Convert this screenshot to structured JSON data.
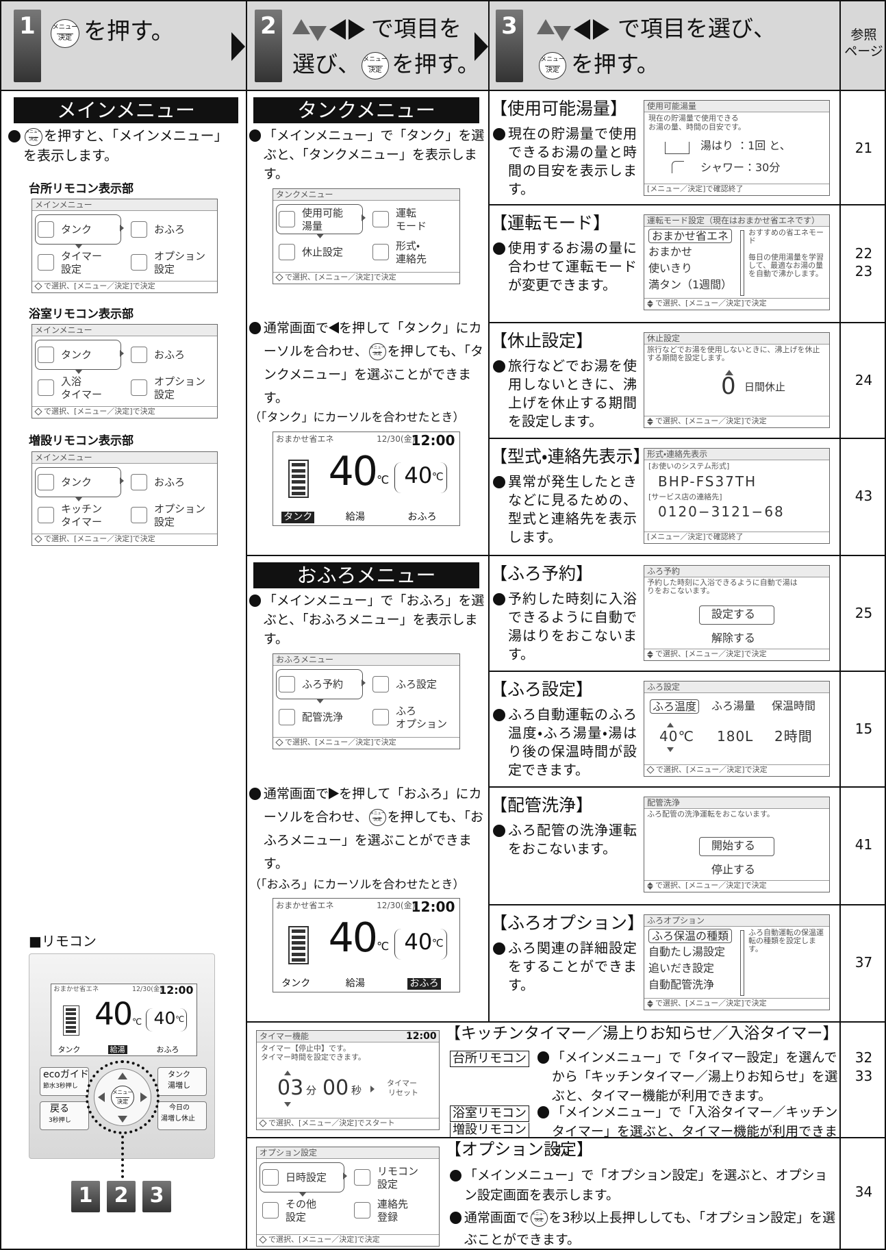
{
  "button_icon": {
    "top": "メニュー",
    "bottom": "決定"
  },
  "header": {
    "step1": {
      "number": "1",
      "text": "を押す。"
    },
    "step2": {
      "number": "2",
      "text_a": "で項目を",
      "text_b": "選び、",
      "text_c": "を押す。"
    },
    "step3": {
      "number": "3",
      "text_a": "で項目を選び、",
      "text_b": "を押す。"
    },
    "ref": [
      "参照",
      "ページ"
    ]
  },
  "footer_select": "で選択、[メニュー／決定]で決定",
  "footer_confirm": "[メニュー／決定]で確認終了",
  "normal_screen": {
    "mode": "おまかせ省エネ",
    "date": "12/30(金)",
    "time": "12:00",
    "temp": "40",
    "unit": "℃",
    "bath_temp": "40",
    "tank": "タンク",
    "hot_water": "給湯",
    "bath": "おふろ"
  },
  "main_menu": {
    "title": "メインメニュー",
    "desc": "を押すと、「メインメニュー」を表示します。",
    "screen_title": "メインメニュー",
    "remotes": [
      {
        "label": "台所リモコン表示部",
        "items": [
          [
            "タンク"
          ],
          [
            "おふろ"
          ],
          [
            "タイマー",
            "設定"
          ],
          [
            "オプション",
            "設定"
          ]
        ]
      },
      {
        "label": "浴室リモコン表示部",
        "items": [
          [
            "タンク"
          ],
          [
            "おふろ"
          ],
          [
            "入浴",
            "タイマー"
          ],
          [
            "オプション",
            "設定"
          ]
        ]
      },
      {
        "label": "増設リモコン表示部",
        "items": [
          [
            "タンク"
          ],
          [
            "おふろ"
          ],
          [
            "キッチン",
            "タイマー"
          ],
          [
            "オプション",
            "設定"
          ]
        ]
      }
    ]
  },
  "tank_menu": {
    "title": "タンクメニュー",
    "desc": "「メインメニュー」で「タンク」を選ぶと、「タンクメニュー」を表示します。",
    "screen_title": "タンクメニュー",
    "items": [
      [
        "使用可能",
        "湯量"
      ],
      [
        "運転",
        "モード"
      ],
      [
        "休止設定"
      ],
      [
        "形式・",
        "連絡先"
      ]
    ],
    "note": [
      "通常画面で",
      "を押して「タンク」にカーソルを合わせ、",
      "を押しても、「タンクメニュー」を選ぶことができます。"
    ],
    "caption": "（「タンク」にカーソルを合わせたとき）"
  },
  "bath_menu": {
    "title": "おふろメニュー",
    "desc": "「メインメニュー」で「おふろ」を選ぶと、「おふろメニュー」を表示します。",
    "screen_title": "おふろメニュー",
    "items": [
      [
        "ふろ予約"
      ],
      [
        "ふろ設定"
      ],
      [
        "配管洗浄"
      ],
      [
        "ふろ",
        "オプション"
      ]
    ],
    "note": [
      "通常画面で",
      "を押して「おふろ」にカーソルを合わせ、",
      "を押しても、「おふろメニュー」を選ぶことができます。"
    ],
    "caption": "（「おふろ」にカーソルを合わせたとき）"
  },
  "settings": [
    {
      "title": "【使用可能湯量】",
      "desc": "現在の貯湯量で使用できるお湯の量と時間の目安を表示します。",
      "pages": [
        "21"
      ],
      "screen": {
        "title": "使用可能湯量",
        "lines": [
          "現在の貯湯量で使用できる",
          "お湯の量、時間の目安です。"
        ],
        "fill": "湯はり ：1回 と、",
        "shower": "シャワー：30分"
      }
    },
    {
      "title": "【運転モード】",
      "desc": "使用するお湯の量に合わせて運転モードが変更できます。",
      "pages": [
        "22",
        "23"
      ],
      "screen": {
        "title": "運転モード設定（現在はおまかせ省エネです）",
        "items": [
          "おまかせ省エネ",
          "おまかせ",
          "使いきり",
          "満タン（1週間）"
        ],
        "side": [
          "おすすめの省エネモード",
          "毎日の使用湯量を学習して、最適なお湯の量を自動で沸かします。"
        ]
      }
    },
    {
      "title": "【休止設定】",
      "desc": "旅行などでお湯を使用しないときに、沸上げを休止する期間を設定します。",
      "pages": [
        "24"
      ],
      "screen": {
        "title": "休止設定",
        "text": "旅行などでお湯を使用しないときに、沸上げを休止する期間を設定します。",
        "value": "0",
        "unit": "日間休止"
      }
    },
    {
      "title": "【型式・連絡先表示】",
      "desc": "異常が発生したときなどに見るための、型式と連絡先を表示します。",
      "pages": [
        "43"
      ],
      "screen": {
        "title": "形式・連絡先表示",
        "lines": [
          "[お使いのシステム形式]",
          "BHP-FS37TH",
          "[サービス店の連絡先]",
          "0120−3121−68"
        ]
      }
    },
    {
      "title": "【ふろ予約】",
      "desc": "予約した時刻に入浴できるように自動で湯はりをおこないます。",
      "pages": [
        "25"
      ],
      "screen": {
        "title": "ふろ予約",
        "text": "予約した時刻に入浴できるように自動で湯はりをおこないます。",
        "buttons": [
          "設定する",
          "解除する"
        ]
      }
    },
    {
      "title": "【ふろ設定】",
      "desc": "ふろ自動運転のふろ温度・ふろ湯量・湯はり後の保温時間が設定できます。",
      "pages": [
        "15"
      ],
      "screen": {
        "title": "ふろ設定",
        "tabs": [
          "ふろ温度",
          "ふろ湯量",
          "保温時間"
        ],
        "values": [
          "40℃",
          "180L",
          "2時間"
        ]
      }
    },
    {
      "title": "【配管洗浄】",
      "desc": "ふろ配管の洗浄運転をおこないます。",
      "pages": [
        "41"
      ],
      "screen": {
        "title": "配管洗浄",
        "text": "ふろ配管の洗浄運転をおこないます。",
        "buttons": [
          "開始する",
          "停止する"
        ]
      }
    },
    {
      "title": "【ふろオプション】",
      "desc": "ふろ関連の詳細設定をすることができます。",
      "pages": [
        "37"
      ],
      "screen": {
        "title": "ふろオプション",
        "items": [
          "ふろ保温の種類",
          "自動たし湯設定",
          "追いだき設定",
          "自動配管洗浄"
        ],
        "side": [
          "ふろ自動運転の保温運転の種類を設定します。"
        ]
      }
    }
  ],
  "timer": {
    "heading": "【キッチンタイマー／湯上りお知らせ／入浴タイマー】",
    "screen": {
      "title": "タイマー機能",
      "time": "12:00",
      "lines": [
        "タイマー【停止中】です。",
        "タイマー時間を設定できます。"
      ],
      "min": "03",
      "min_unit": "分",
      "sec": "00",
      "sec_unit": "秒",
      "reset": [
        "タイマー",
        "リセット"
      ],
      "footer": "で選択、[メニュー／決定]でスタート"
    },
    "kitchen_tag": "台所リモコン",
    "kitchen_text": "「メインメニュー」で「タイマー設定」を選んでから「キッチンタイマー／湯上りお知らせ」を選ぶと、タイマー機能が利用できます。",
    "bath_tags": [
      "浴室リモコン",
      "増設リモコン"
    ],
    "bath_text": "「メインメニュー」で「入浴タイマー／キッチンタイマー」を選ぶと、タイマー機能が利用できます。",
    "pages": [
      "32",
      "33"
    ]
  },
  "option": {
    "heading": "【オプション設定】",
    "screen_title": "オプション設定",
    "items": [
      [
        "日時設定"
      ],
      [
        "リモコン",
        "設定"
      ],
      [
        "その他",
        "設定"
      ],
      [
        "連絡先",
        "登録"
      ]
    ],
    "text1": "「メインメニュー」で「オプション設定」を選ぶと、オプション設定画面を表示します。",
    "text2": [
      "通常画面で",
      "を3秒以上長押ししても、「オプション設定」を選ぶことができます。"
    ],
    "pages": [
      "34"
    ]
  },
  "remote": {
    "label": "■リモコン",
    "eco": "ecoガイド",
    "eco_sub": "節水3秒押し",
    "back": "戻る",
    "back_sub": "3秒押し",
    "tank_boost": [
      "タンク",
      "湯増し"
    ],
    "boost_stop": [
      "今日の",
      "湯増し休止"
    ],
    "steps": [
      "1",
      "2",
      "3"
    ]
  }
}
